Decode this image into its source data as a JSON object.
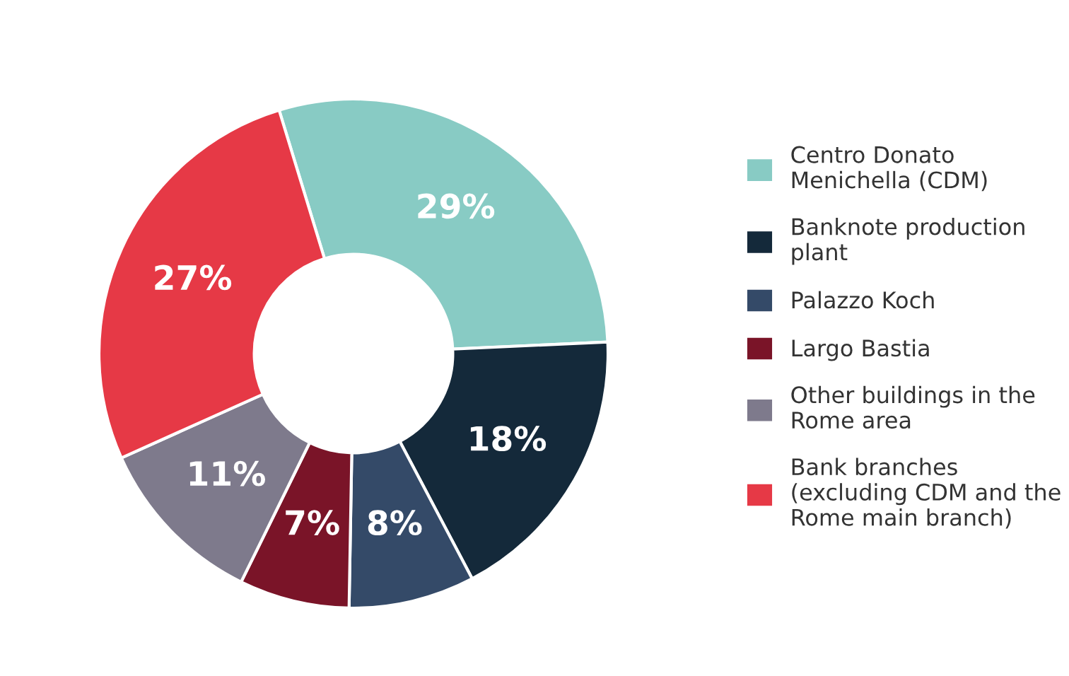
{
  "chart_data": {
    "type": "donut",
    "categories": [
      "Centro Donato\nMenichella (CDM)",
      "Banknote production\nplant",
      "Palazzo Koch",
      "Largo Bastia",
      "Other buildings in the\nRome area",
      "Bank branches\n(excluding CDM and the\nRome main branch)"
    ],
    "values": [
      29,
      18,
      8,
      7,
      11,
      27
    ],
    "colors": [
      "#88cbc4",
      "#14293a",
      "#344a68",
      "#7a1428",
      "#7e7a8c",
      "#e63946"
    ],
    "value_labels": [
      "29%",
      "18%",
      "8%",
      "7%",
      "11%",
      "27%"
    ],
    "legend": "right"
  }
}
